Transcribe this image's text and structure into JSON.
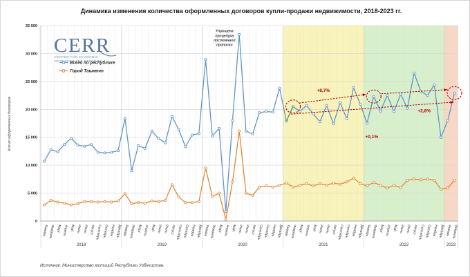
{
  "title": "Динамика изменения количества оформленных договоров купли-продажи недвижимости, 2018-2023 гг.",
  "logo": {
    "name": "CERR",
    "caption_line1": "CENTER FOR ECONOMIC",
    "caption_line2": "RESEARCH AND REFORMS"
  },
  "legend": {
    "items": [
      {
        "label": "Всего по республике",
        "color": "#5b92c4"
      },
      {
        "label": "Город Ташкент",
        "color": "#dd8630"
      }
    ]
  },
  "y_axis": {
    "label": "Кол-во оформленных договоров",
    "tick_labels": [
      "0",
      "5 000",
      "10 000",
      "15 000",
      "20 000",
      "25 000",
      "30 000",
      "35 000"
    ]
  },
  "source": "Источник: Министерство юстиций Республики Узбекистан.",
  "chart_data": {
    "type": "line",
    "title": "Динамика изменения количества оформленных договоров купли-продажи недвижимости, 2018-2023 гг.",
    "ylabel": "Кол-во оформленных договоров",
    "ylim": [
      0,
      35000
    ],
    "grid": true,
    "legend_position": "top-left",
    "month_names": [
      "Январь",
      "Февраль",
      "Март",
      "Апрель",
      "Май",
      "Июнь",
      "Июль",
      "Август",
      "Сентябрь",
      "Октябрь",
      "Ноябрь",
      "Декабрь"
    ],
    "years": [
      {
        "label": "2018",
        "months": 12
      },
      {
        "label": "2019",
        "months": 12
      },
      {
        "label": "2020",
        "months": 12
      },
      {
        "label": "2021",
        "months": 12
      },
      {
        "label": "2022",
        "months": 12
      },
      {
        "label": "2023",
        "months": 2
      }
    ],
    "series": [
      {
        "name": "Всего по республике",
        "color": "#5b92c4",
        "values": [
          10700,
          12800,
          12400,
          13700,
          14800,
          13600,
          13400,
          13700,
          12300,
          12200,
          12300,
          12600,
          18400,
          9000,
          13500,
          13000,
          16100,
          14800,
          14000,
          18700,
          16400,
          13300,
          15400,
          15700,
          28900,
          15200,
          16600,
          1700,
          18000,
          33400,
          16100,
          15600,
          19400,
          19600,
          19500,
          23800,
          17900,
          20500,
          19600,
          20700,
          19200,
          17800,
          20700,
          17400,
          21200,
          18300,
          23900,
          20900,
          17500,
          22300,
          19700,
          22500,
          19600,
          22700,
          20200,
          26500,
          23200,
          22500,
          24400,
          15000,
          18000,
          22900
        ]
      },
      {
        "name": "Город Ташкент",
        "color": "#dd8630",
        "values": [
          2900,
          3700,
          3400,
          3200,
          2900,
          3100,
          3500,
          3500,
          3400,
          3500,
          3400,
          3600,
          4900,
          3100,
          3300,
          3200,
          3600,
          3500,
          3700,
          6500,
          4300,
          3300,
          3300,
          3500,
          9500,
          4400,
          5000,
          300,
          7000,
          16100,
          5000,
          4600,
          6100,
          6300,
          6100,
          6400,
          6800,
          6100,
          6400,
          6700,
          6300,
          6700,
          6400,
          6800,
          6600,
          7000,
          7700,
          6700,
          6300,
          6900,
          6400,
          5900,
          6400,
          6000,
          7300,
          7500,
          7400,
          7500,
          7300,
          5700,
          5900,
          7300
        ]
      }
    ],
    "regions": [
      {
        "label": "2021",
        "color": "#f8f3ba",
        "from_month": 36,
        "to_month": 48
      },
      {
        "label": "2022",
        "color": "#d8efcc",
        "from_month": 48,
        "to_month": 60
      },
      {
        "label": "2023",
        "color": "#f8d8c5",
        "from_month": 60,
        "to_month": 62
      }
    ],
    "highlight_segment": {
      "series_index": 0,
      "from_index": 36,
      "to_index": 37,
      "color": "#59a65b"
    },
    "circled_points": [
      {
        "month_index": 37,
        "value": 20500
      },
      {
        "month_index": 49,
        "value": 22300
      },
      {
        "month_index": 61,
        "value": 22900
      }
    ],
    "growth_labels": [
      {
        "text": "+8,7%",
        "month": 41.5,
        "value": 23400
      },
      {
        "text": "+0,1%",
        "month": 48.7,
        "value": 15100
      },
      {
        "text": "+2,6%",
        "month": 56.5,
        "value": 19700
      }
    ],
    "note": {
      "lines": [
        "Упрощена",
        "процедура",
        "постоянной",
        "прописки"
      ],
      "month": 26.8,
      "value": 33800
    },
    "annotation_color": "#b00000"
  }
}
